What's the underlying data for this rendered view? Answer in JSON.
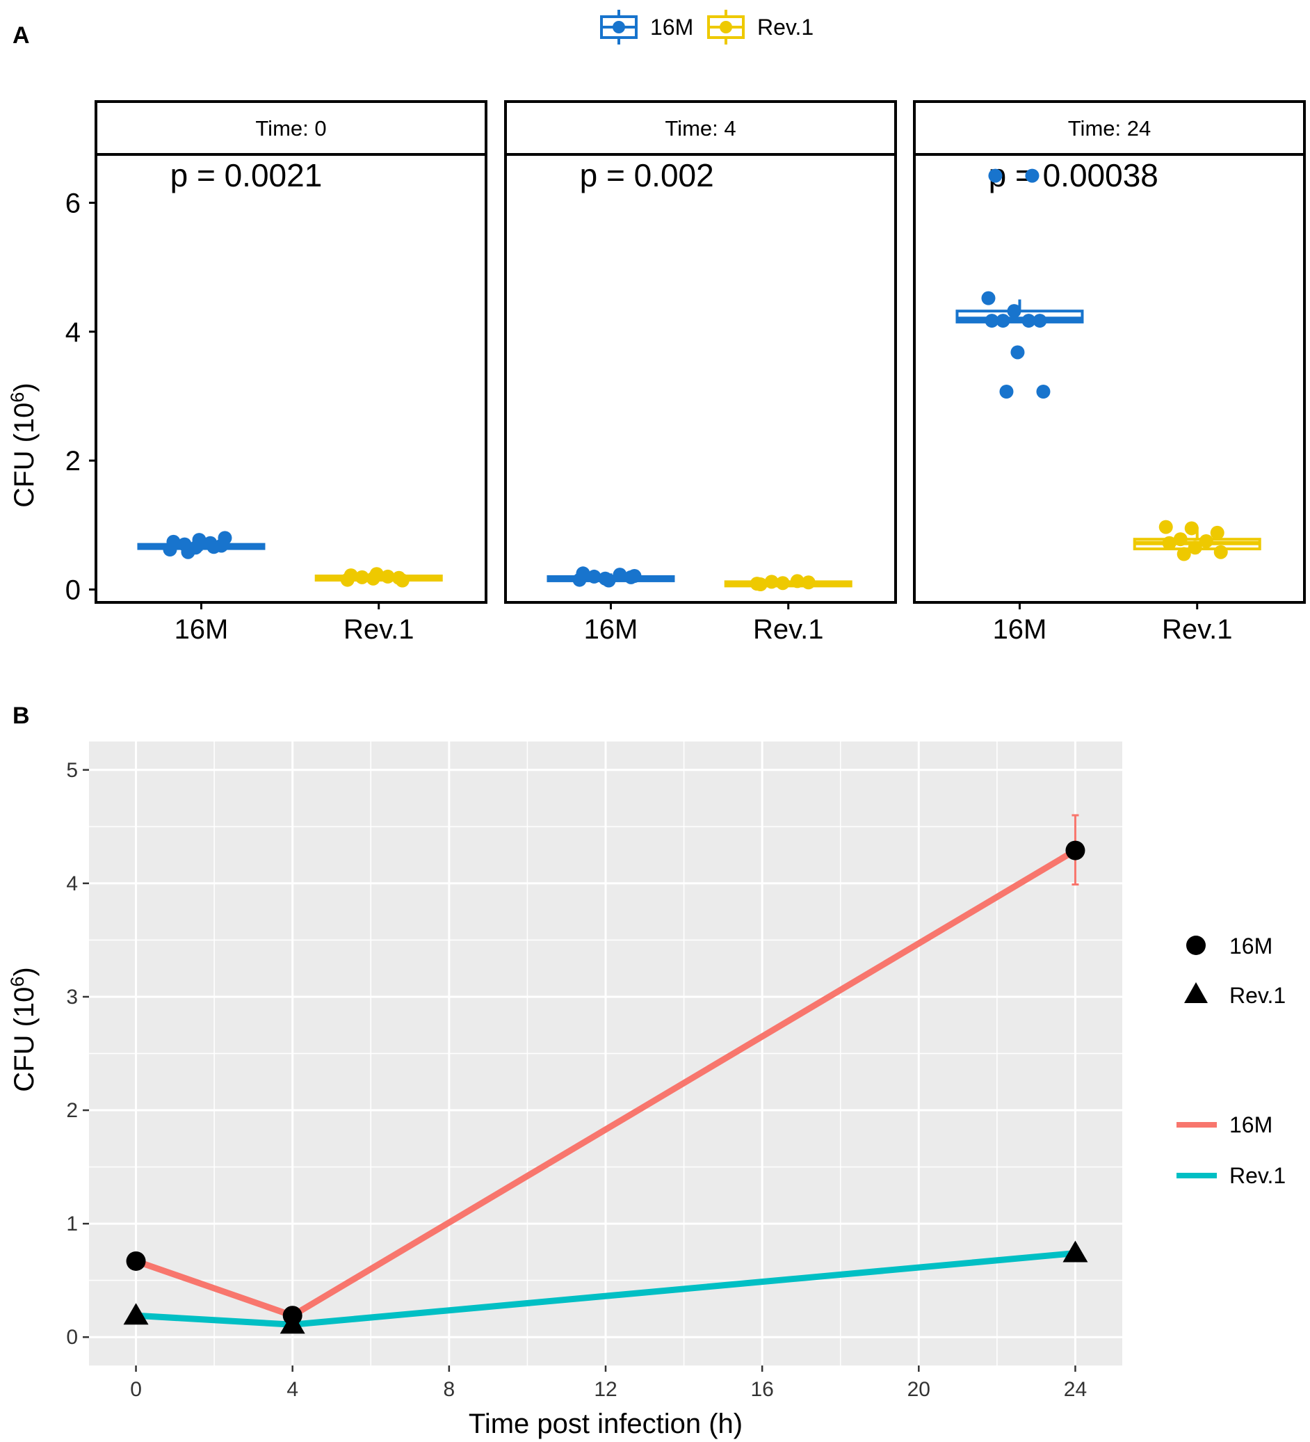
{
  "figure": {
    "panel_a_label": "A",
    "panel_b_label": "B"
  },
  "legend_a": {
    "items": [
      {
        "label": "16M",
        "color": "#1874CD"
      },
      {
        "label": "Rev.1",
        "color": "#EEC900"
      }
    ]
  },
  "legend_b": {
    "shape_items": [
      {
        "label": "16M",
        "shape": "circle"
      },
      {
        "label": "Rev.1",
        "shape": "triangle"
      }
    ],
    "line_items": [
      {
        "label": "16M",
        "color": "#F8766D"
      },
      {
        "label": "Rev.1",
        "color": "#00BFC4"
      }
    ]
  },
  "chart_data": [
    {
      "type": "box",
      "title": "",
      "ylabel": "CFU (10",
      "ylabel_exponent": "6",
      "ylabel_close": ")",
      "ylim": [
        -0.2,
        6.75
      ],
      "yticks": [
        "0",
        "2",
        "4",
        "6"
      ],
      "categories": [
        "16M",
        "Rev.1"
      ],
      "category_colors": {
        "16M": "#1874CD",
        "Rev.1": "#EEC900"
      },
      "facets": [
        {
          "strip": "Time: 0",
          "p_value": "p = 0.0021",
          "boxes": [
            {
              "category": "16M",
              "q1": 0.64,
              "median": 0.67,
              "q3": 0.7,
              "whisker_low": 0.6,
              "whisker_high": 0.78,
              "points": [
                0.62,
                0.65,
                0.68,
                0.7,
                0.72,
                0.74,
                0.77,
                0.8,
                0.58,
                0.66
              ]
            },
            {
              "category": "Rev.1",
              "q1": 0.17,
              "median": 0.19,
              "q3": 0.21,
              "whisker_low": 0.14,
              "whisker_high": 0.24,
              "points": [
                0.15,
                0.17,
                0.18,
                0.19,
                0.2,
                0.22,
                0.24,
                0.14
              ]
            }
          ]
        },
        {
          "strip": "Time: 4",
          "p_value": "p = 0.002",
          "boxes": [
            {
              "category": "16M",
              "q1": 0.16,
              "median": 0.18,
              "q3": 0.2,
              "whisker_low": 0.13,
              "whisker_high": 0.25,
              "points": [
                0.15,
                0.17,
                0.19,
                0.2,
                0.23,
                0.25,
                0.14,
                0.21
              ]
            },
            {
              "category": "Rev.1",
              "q1": 0.09,
              "median": 0.1,
              "q3": 0.12,
              "whisker_low": 0.08,
              "whisker_high": 0.13,
              "points": [
                0.09,
                0.1,
                0.11,
                0.12,
                0.13,
                0.08
              ]
            }
          ]
        },
        {
          "strip": "Time: 24",
          "p_value": "p = 0.00038",
          "boxes": [
            {
              "category": "16M",
              "q1": 4.15,
              "median": 4.2,
              "q3": 4.32,
              "whisker_low": 4.15,
              "whisker_high": 4.5,
              "points": [
                4.52,
                4.32,
                4.17,
                4.17,
                4.17,
                4.17,
                3.68,
                3.07,
                3.07,
                6.42,
                6.42
              ]
            },
            {
              "category": "Rev.1",
              "q1": 0.63,
              "median": 0.72,
              "q3": 0.78,
              "whisker_low": 0.55,
              "whisker_high": 0.97,
              "points": [
                0.97,
                0.95,
                0.88,
                0.78,
                0.75,
                0.72,
                0.65,
                0.58,
                0.55
              ]
            }
          ]
        }
      ]
    },
    {
      "type": "line",
      "title": "",
      "xlabel": "Time post infection (h)",
      "ylabel": "CFU (10",
      "ylabel_exponent": "6",
      "ylabel_close": ")",
      "xlim": [
        -1.2,
        25.2
      ],
      "ylim": [
        -0.25,
        5.25
      ],
      "xticks": [
        "0",
        "4",
        "8",
        "12",
        "16",
        "20",
        "24"
      ],
      "yticks": [
        "0",
        "1",
        "2",
        "3",
        "4",
        "5"
      ],
      "background": "#EBEBEB",
      "grid": true,
      "x": [
        0,
        4,
        24
      ],
      "series": [
        {
          "name": "16M",
          "shape": "circle",
          "color": "#F8766D",
          "values": [
            0.67,
            0.19,
            4.29
          ],
          "error_bars": [
            null,
            null,
            [
              3.99,
              4.6
            ]
          ]
        },
        {
          "name": "Rev.1",
          "shape": "triangle",
          "color": "#00BFC4",
          "values": [
            0.19,
            0.11,
            0.74
          ],
          "error_bars": [
            null,
            null,
            null
          ]
        }
      ]
    }
  ]
}
